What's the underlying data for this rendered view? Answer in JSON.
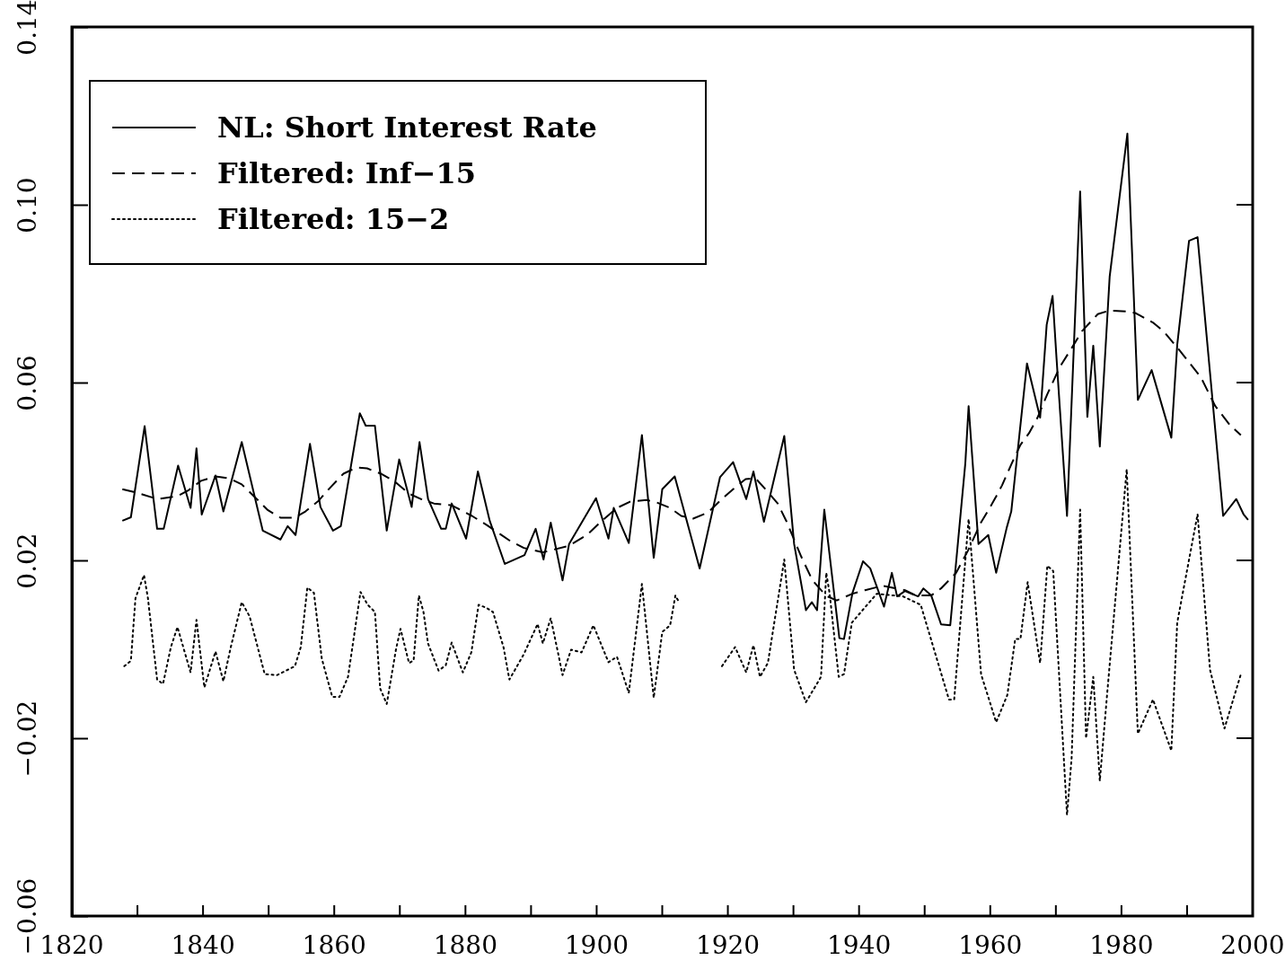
{
  "chart_data": {
    "type": "line",
    "xlim": [
      1820,
      2000
    ],
    "xticks": [
      1820,
      {
        "value": 1830,
        "label": null
      },
      1840,
      {
        "value": 1850,
        "label": null
      },
      1860,
      {
        "value": 1870,
        "label": null
      },
      1880,
      {
        "value": 1890,
        "label": null
      },
      1900,
      {
        "value": 1910,
        "label": null
      },
      1920,
      {
        "value": 1930,
        "label": null
      },
      1940,
      {
        "value": 1950,
        "label": null
      },
      1960,
      {
        "value": 1970,
        "label": null
      },
      1980,
      {
        "value": 1990,
        "label": null
      },
      2000
    ],
    "ylim": [
      -0.06,
      0.14
    ],
    "yticks": [
      {
        "value": -0.06,
        "label": "−0.06"
      },
      {
        "value": -0.02,
        "label": "−0.02"
      },
      {
        "value": 0.02,
        "label": "0.02"
      },
      {
        "value": 0.06,
        "label": "0.06"
      },
      {
        "value": 0.1,
        "label": "0.10"
      },
      {
        "value": 0.14,
        "label": "0.14"
      }
    ],
    "grid": false,
    "legend": "top left",
    "marker": "none",
    "series": [
      {
        "name": "NL: Short Interest Rate",
        "color": "#000000",
        "line_style": "solid",
        "x": [
          1827.7,
          1829,
          1831.1,
          1833,
          1834,
          1836.2,
          1838.1,
          1839,
          1839.8,
          1841.9,
          1843.1,
          1845.9,
          1849.1,
          1851.8,
          1852.9,
          1854.1,
          1856.3,
          1857.9,
          1859.8,
          1861,
          1863.9,
          1864.8,
          1866.2,
          1868,
          1869.9,
          1871.8,
          1873,
          1874.3,
          1876.3,
          1877,
          1877.9,
          1880.1,
          1881.9,
          1883.7,
          1886,
          1889,
          1890.7,
          1891.9,
          1893,
          1894.8,
          1895.8,
          1899.9,
          1901.8,
          1902.6,
          1904.9,
          1906.9,
          1908.7,
          1910,
          1911.9,
          1915.7,
          1918.8,
          1920.8,
          1922.8,
          1923.9,
          1925.5,
          1928.6,
          1930.1,
          1931.9,
          1932.8,
          1933.6,
          1934.7,
          1937,
          1937.7,
          1939,
          1940.6,
          1941.7,
          1943.8,
          1945,
          1945.8,
          1947,
          1949,
          1949.8,
          1951,
          1952.5,
          1953.9,
          1956.2,
          1956.7,
          1958.2,
          1959.7,
          1960.9,
          1962.5,
          1963.2,
          1965.6,
          1967.6,
          1968.6,
          1969.5,
          1970.1,
          1971.7,
          1973.7,
          1974.8,
          1975.7,
          1976.7,
          1978.2,
          1980.9,
          1982.5,
          1984.6,
          1987.6,
          1988.5,
          1990.3,
          1991.6,
          1995.5,
          1997.5,
          1998.6,
          1999.3
        ],
        "values": [
          0.0289,
          0.0297,
          0.0502,
          0.0271,
          0.0271,
          0.0413,
          0.0318,
          0.0452,
          0.0303,
          0.0391,
          0.031,
          0.0466,
          0.0267,
          0.0247,
          0.0277,
          0.0257,
          0.0462,
          0.032,
          0.0267,
          0.0277,
          0.0531,
          0.0503,
          0.0503,
          0.0267,
          0.0427,
          0.032,
          0.0466,
          0.0338,
          0.0271,
          0.0271,
          0.0328,
          0.0249,
          0.04,
          0.0289,
          0.0192,
          0.0212,
          0.0271,
          0.0202,
          0.0285,
          0.0155,
          0.0237,
          0.034,
          0.0249,
          0.0318,
          0.0239,
          0.0482,
          0.0206,
          0.036,
          0.0389,
          0.0182,
          0.0387,
          0.0421,
          0.0338,
          0.04,
          0.0287,
          0.048,
          0.0237,
          0.0088,
          0.0106,
          0.0088,
          0.0314,
          0.0025,
          0.0023,
          0.0127,
          0.0198,
          0.0182,
          0.0096,
          0.0172,
          0.0119,
          0.0131,
          0.0119,
          0.0137,
          0.0121,
          0.0056,
          0.0054,
          0.0419,
          0.0547,
          0.0237,
          0.0257,
          0.0172,
          0.0273,
          0.031,
          0.0643,
          0.0521,
          0.073,
          0.0795,
          0.0655,
          0.03,
          0.103,
          0.0523,
          0.0683,
          0.0456,
          0.0838,
          0.116,
          0.0561,
          0.0628,
          0.0476,
          0.0685,
          0.0919,
          0.0927,
          0.03,
          0.0338,
          0.0304,
          0.0291
        ]
      },
      {
        "name": "Filtered: Inf−15",
        "color": "#000000",
        "line_style": "dashed",
        "x": [
          1827.7,
          1830,
          1833,
          1836,
          1837.8,
          1839.7,
          1841.9,
          1843.9,
          1845.9,
          1848.2,
          1849.8,
          1851.8,
          1854,
          1855.6,
          1857.6,
          1859.4,
          1861.4,
          1863.4,
          1865,
          1867.1,
          1869.1,
          1871.4,
          1873.2,
          1875.2,
          1877.9,
          1881,
          1883.3,
          1884.9,
          1886.9,
          1888.9,
          1891.8,
          1895.8,
          1898.5,
          1900.8,
          1903.1,
          1905.1,
          1907.6,
          1909.2,
          1911.2,
          1912.9,
          1914.7,
          1917,
          1918.8,
          1920.8,
          1922.7,
          1924.2,
          1925.5,
          1927.6,
          1928.9,
          1931.2,
          1932.9,
          1935,
          1936.6,
          1939,
          1940.9,
          1943.6,
          1947,
          1948.7,
          1951,
          1952.5,
          1954.8,
          1956.6,
          1958.5,
          1959.6,
          1960.9,
          1961.8,
          1963.3,
          1964.6,
          1965.9,
          1967.2,
          1968.7,
          1970.6,
          1972.3,
          1974,
          1976.4,
          1978.1,
          1980.9,
          1982.2,
          1984.9,
          1986.5,
          1988.5,
          1989.8,
          1992.1,
          1994.3,
          1996.6,
          1998.2
        ],
        "values": [
          0.036,
          0.0352,
          0.0338,
          0.0344,
          0.0358,
          0.0379,
          0.0389,
          0.0385,
          0.0371,
          0.0338,
          0.0314,
          0.0296,
          0.0296,
          0.031,
          0.0334,
          0.0364,
          0.0395,
          0.0409,
          0.0407,
          0.0395,
          0.0379,
          0.035,
          0.0338,
          0.0328,
          0.0324,
          0.03,
          0.0279,
          0.0263,
          0.0243,
          0.0228,
          0.0218,
          0.0233,
          0.0257,
          0.0289,
          0.0318,
          0.0332,
          0.0336,
          0.033,
          0.0318,
          0.03,
          0.0294,
          0.0308,
          0.0334,
          0.036,
          0.0383,
          0.0385,
          0.0364,
          0.0328,
          0.0289,
          0.0208,
          0.0155,
          0.012,
          0.011,
          0.0125,
          0.0133,
          0.0143,
          0.0133,
          0.0121,
          0.0121,
          0.0137,
          0.0172,
          0.0222,
          0.0283,
          0.031,
          0.0344,
          0.0369,
          0.0419,
          0.046,
          0.0486,
          0.0521,
          0.0574,
          0.0635,
          0.0675,
          0.0716,
          0.0754,
          0.0762,
          0.076,
          0.0756,
          0.0734,
          0.0714,
          0.0679,
          0.0655,
          0.0612,
          0.0547,
          0.0503,
          0.0482
        ]
      },
      {
        "name": "Filtered: 15−2",
        "color": "#000000",
        "line_style": "dotted",
        "x": [
          1828,
          1829,
          1829.7,
          1831,
          1831.6,
          1833,
          1833.9,
          1835.1,
          1836.1,
          1838.1,
          1839,
          1840.2,
          1841.9,
          1843.1,
          1844.2,
          1845.9,
          1847.1,
          1849.4,
          1851.3,
          1854,
          1854.9,
          1855.9,
          1856.9,
          1858.1,
          1859.7,
          1860.8,
          1862.1,
          1864,
          1865.1,
          1866.2,
          1867,
          1868,
          1869.4,
          1870.1,
          1871.4,
          1872.1,
          1872.9,
          1873.6,
          1874.3,
          1875.9,
          1877,
          1877.9,
          1879.6,
          1880.9,
          1882,
          1883.1,
          1884.2,
          1885.8,
          1886.7,
          1888.9,
          1891,
          1891.8,
          1893,
          1894.1,
          1894.8,
          1896.1,
          1897.7,
          1899.5,
          1901.8,
          1903.1,
          1904.9,
          1906.9,
          1908.7,
          1910,
          1911.2,
          1912,
          1912.6,
          1916,
          1919.1,
          1921.1,
          1922.8,
          1923.9,
          1924.9,
          1926.1,
          1928.6,
          1930.1,
          1931.9,
          1934.2,
          1935,
          1935.5,
          1936.9,
          1937.7,
          1938.9,
          1942.7,
          1946.7,
          1949.4,
          1953.7,
          1954.5,
          1956.7,
          1958.6,
          1960.9,
          1962.6,
          1963.8,
          1964.6,
          1965.7,
          1967.6,
          1968.7,
          1969.6,
          1971.7,
          1972.4,
          1973.7,
          1974.6,
          1975.7,
          1976.7,
          1977.8,
          1980.8,
          1982.5,
          1984.8,
          1987.6,
          1988.5,
          1991.6,
          1993.5,
          1995.7,
          1998.2
        ],
        "values": [
          -0.0038,
          -0.0026,
          0.0115,
          0.0167,
          0.0115,
          -0.0068,
          -0.0078,
          0.0005,
          0.005,
          -0.0052,
          0.0066,
          -0.0086,
          -0.0005,
          -0.0072,
          0.0003,
          0.0106,
          0.0074,
          -0.0056,
          -0.0058,
          -0.0038,
          0.0005,
          0.0139,
          0.0127,
          -0.0021,
          -0.0107,
          -0.0107,
          -0.0062,
          0.0129,
          0.01,
          0.0084,
          -0.0088,
          -0.0123,
          -0.0001,
          0.0046,
          -0.0031,
          -0.0025,
          0.0121,
          0.0084,
          0.0013,
          -0.0048,
          -0.0036,
          0.0015,
          -0.0052,
          -0.0007,
          0.01,
          0.0094,
          0.0084,
          0.0005,
          -0.0068,
          -0.0011,
          0.0057,
          0.0013,
          0.007,
          -0.0007,
          -0.0058,
          -0.0001,
          -0.0007,
          0.0054,
          -0.0029,
          -0.0017,
          -0.0098,
          0.0147,
          -0.0109,
          0.0039,
          0.0054,
          0.0121,
          0.0105,
          null,
          -0.0038,
          0.0005,
          -0.0052,
          0.0009,
          -0.0062,
          -0.0031,
          0.0202,
          -0.0046,
          -0.0119,
          -0.0062,
          0.0172,
          0.0127,
          -0.0062,
          -0.0056,
          0.006,
          0.0125,
          0.0119,
          0.01,
          -0.0113,
          -0.0113,
          0.0293,
          -0.0056,
          -0.0164,
          -0.0103,
          0.0023,
          0.0023,
          0.0151,
          -0.0031,
          0.0188,
          0.0176,
          -0.0373,
          -0.0245,
          0.0314,
          -0.02,
          -0.0062,
          -0.0296,
          -0.0103,
          0.0405,
          -0.019,
          -0.0113,
          -0.0228,
          0.006,
          0.0304,
          -0.0046,
          -0.0178,
          -0.0056
        ]
      }
    ]
  }
}
